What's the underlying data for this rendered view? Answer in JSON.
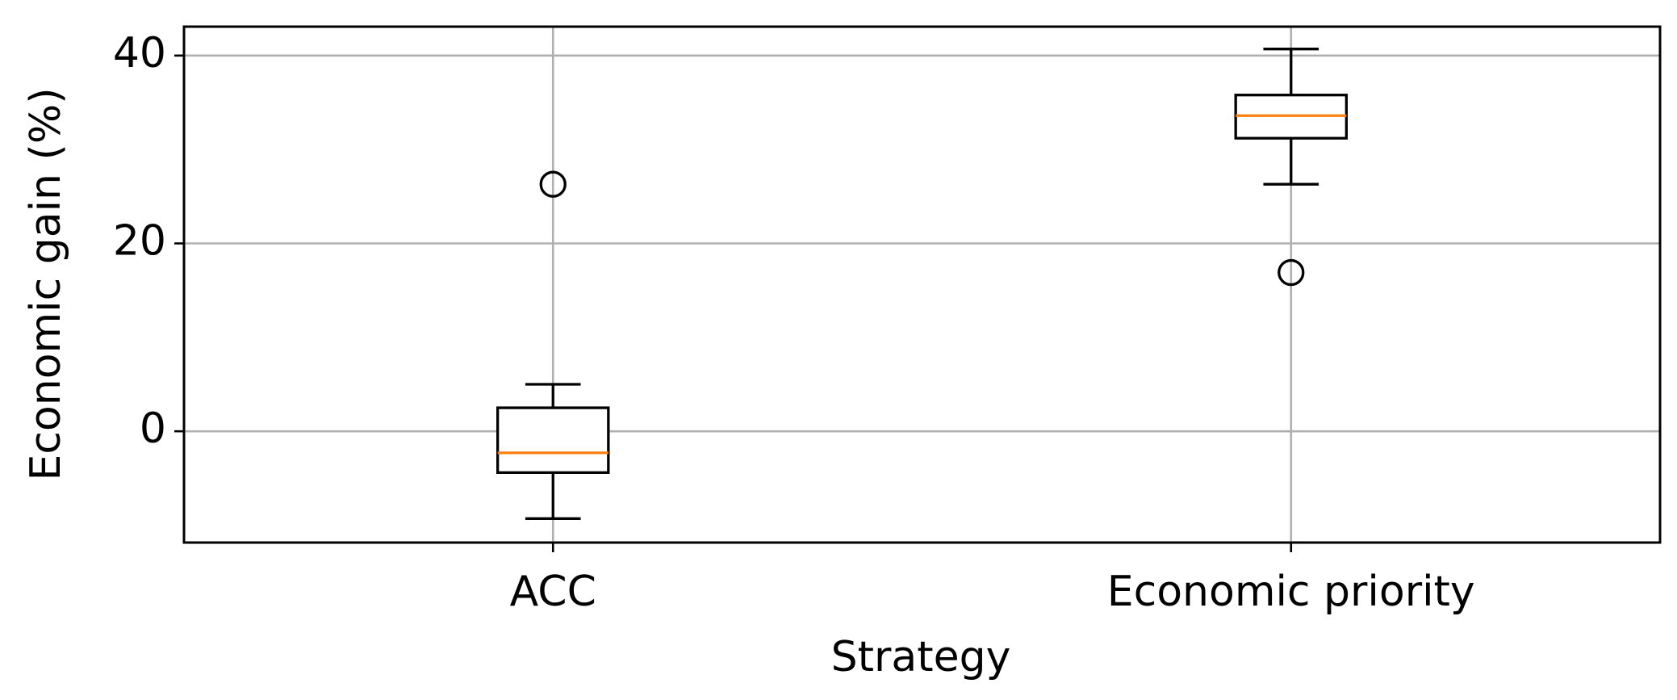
{
  "chart_data": {
    "type": "box",
    "x_label": "Strategy",
    "y_label": "Economic gain (%)",
    "categories": [
      "ACC",
      "Economic priority"
    ],
    "boxes": [
      {
        "whislo": -9.3,
        "q1": -4.4,
        "med": -2.3,
        "q3": 2.5,
        "whishi": 5.0,
        "fliers": [
          26.3
        ]
      },
      {
        "whislo": 26.3,
        "q1": 31.2,
        "med": 33.6,
        "q3": 35.8,
        "whishi": 40.7,
        "fliers": [
          16.9
        ]
      }
    ],
    "box_color": "#000000",
    "median_color": "#ff7f0e",
    "ylim": [
      -11.85,
      43.08
    ],
    "yticks": [
      0,
      20,
      40
    ],
    "grid": true
  }
}
